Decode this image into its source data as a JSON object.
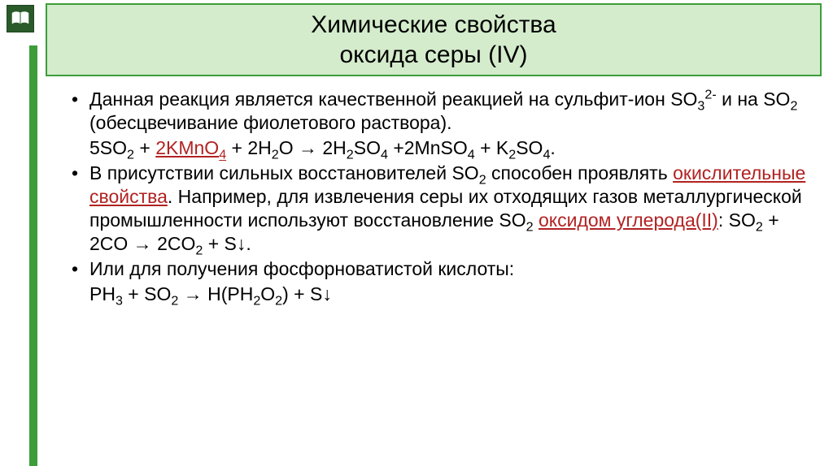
{
  "title": {
    "line1": "Химические свойства",
    "line2": "оксида серы (IV)"
  },
  "colors": {
    "title_bg": "#d4eccc",
    "title_border": "#3d9d3a",
    "green_bar": "#3d9d3a",
    "text": "#000000",
    "link": "#b22222",
    "icon_bg": "#2b5a2a"
  },
  "bullets": [
    {
      "type": "text",
      "runs": [
        {
          "t": "Данная реакция является качественной реакцией на сульфит-ион SO"
        },
        {
          "t": "3",
          "sub": true
        },
        {
          "t": "2-",
          "sup": true
        },
        {
          "t": " и на SO"
        },
        {
          "t": "2",
          "sub": true
        },
        {
          "t": " (обесцвечивание фиолетового раствора)."
        }
      ]
    },
    {
      "type": "eq",
      "runs": [
        {
          "t": "5SO"
        },
        {
          "t": "2",
          "sub": true
        },
        {
          "t": " + "
        },
        {
          "t": "2KMnO",
          "link": true
        },
        {
          "t": "4",
          "sub": true,
          "link": true
        },
        {
          "t": " + 2H"
        },
        {
          "t": "2",
          "sub": true
        },
        {
          "t": "O → 2H"
        },
        {
          "t": "2",
          "sub": true
        },
        {
          "t": "SO"
        },
        {
          "t": "4",
          "sub": true
        },
        {
          "t": " +2MnSO"
        },
        {
          "t": "4",
          "sub": true
        },
        {
          "t": " + K"
        },
        {
          "t": "2",
          "sub": true
        },
        {
          "t": "SO"
        },
        {
          "t": "4",
          "sub": true
        },
        {
          "t": "."
        }
      ]
    },
    {
      "type": "text",
      "runs": [
        {
          "t": "В присутствии сильных восстановителей SO"
        },
        {
          "t": "2",
          "sub": true
        },
        {
          "t": " способен проявлять "
        },
        {
          "t": "окислительные свойства",
          "link": true
        },
        {
          "t": ". Например, для извлечения серы их отходящих газов металлургической промышленности используют восстановление SO"
        },
        {
          "t": "2",
          "sub": true
        },
        {
          "t": " "
        },
        {
          "t": "оксидом углерода(II)",
          "link": true
        },
        {
          "t": ": SO"
        },
        {
          "t": "2",
          "sub": true
        },
        {
          "t": " + 2CO → 2CO"
        },
        {
          "t": "2",
          "sub": true
        },
        {
          "t": " + S↓."
        }
      ]
    },
    {
      "type": "text",
      "runs": [
        {
          "t": "Или для получения фосфорноватистой кислоты:"
        }
      ]
    },
    {
      "type": "eq",
      "runs": [
        {
          "t": "PH"
        },
        {
          "t": "3",
          "sub": true
        },
        {
          "t": " + SO"
        },
        {
          "t": "2",
          "sub": true
        },
        {
          "t": " → H(PH"
        },
        {
          "t": "2",
          "sub": true
        },
        {
          "t": "O"
        },
        {
          "t": "2",
          "sub": true
        },
        {
          "t": ") + S↓"
        }
      ]
    }
  ]
}
